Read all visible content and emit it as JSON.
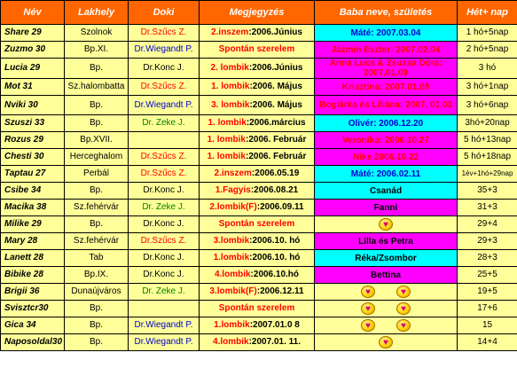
{
  "headers": {
    "name": "Név",
    "city": "Lakhely",
    "doctor": "Doki",
    "note": "Megjegyzés",
    "baby": "Baba neve, születés",
    "weeks": "Hét+ nap"
  },
  "colors": {
    "header_bg": "#ff6600",
    "row_bg": "#ffff99",
    "cyan": "#00ffff",
    "magenta": "#ff00ff",
    "red_text": "#ff0000",
    "blue_text": "#0000cc",
    "green_text": "#008000"
  },
  "rows": [
    {
      "name": "Share 29",
      "city": "Szolnok",
      "doctor": "Dr.Szűcs Z.",
      "doc_color": "red",
      "note_lead": "2.inszem",
      "note_rest": ":2006.Június",
      "baby": "Máté: 2007.03.04",
      "baby_bg": "cyan",
      "icons": 0,
      "weeks": "1 hó+5nap"
    },
    {
      "name": "Zuzmo 30",
      "city": "Bp.XI.",
      "doctor": "Dr.Wiegandt P.",
      "doc_color": "blue",
      "note_lead": "Spontán szerelem",
      "note_rest": "",
      "baby": "Jázmin Eszter: 2007.02.04",
      "baby_bg": "magenta",
      "icons": 0,
      "weeks": "2 hó+5nap"
    },
    {
      "name": "Lucia 29",
      "city": "Bp.",
      "doctor": "Dr.Konc J.",
      "doc_color": "black",
      "note_lead": "2. lombik",
      "note_rest": ":2006.Június",
      "baby": "Anna Luca &        Zsuzsa Dóra: 2007.01.09",
      "baby_bg": "magenta",
      "icons": 0,
      "weeks": "3 hó"
    },
    {
      "name": "Mot 31",
      "city": "Sz.halombatta",
      "doctor": "Dr.Szűcs Z.",
      "doc_color": "red",
      "note_lead": "1. lombik",
      "note_rest": ":2006. Május",
      "baby": "Krisztina: 2007.01.08",
      "baby_bg": "magenta",
      "icons": 0,
      "weeks": "3 hó+1nap"
    },
    {
      "name": "Nviki 30",
      "city": "Bp.",
      "doctor": "Dr.Wiegandt P.",
      "doc_color": "blue",
      "note_lead": "3. lombik",
      "note_rest": ":2006. Május",
      "baby": "Boglárka  és Liliána: 2007. 01.03",
      "baby_bg": "magenta",
      "icons": 0,
      "weeks": "3 hó+6nap"
    },
    {
      "name": "Szuszi 33",
      "city": "Bp.",
      "doctor": "Dr. Zeke J.",
      "doc_color": "green",
      "note_lead": "1. lombik",
      "note_rest": ":2006.március",
      "baby": "Olivér:  2006.12.20",
      "baby_bg": "cyan",
      "icons": 0,
      "weeks": "3hó+20nap"
    },
    {
      "name": "Rozus 29",
      "city": "Bp.XVII.",
      "doctor": "",
      "doc_color": "black",
      "note_lead": "1. lombik",
      "note_rest": ":2006. Február",
      "baby": "Veronika: 2006.10.27",
      "baby_bg": "magenta",
      "icons": 0,
      "weeks": "5 hó+13nap"
    },
    {
      "name": "Chesti 30",
      "city": "Herceghalom",
      "doctor": "Dr.Szűcs Z.",
      "doc_color": "red",
      "note_lead": "1. lombik",
      "note_rest": ":2006. Február",
      "baby": "Nike 2006.10.22",
      "baby_bg": "magenta",
      "icons": 0,
      "weeks": "5 hó+18nap"
    },
    {
      "name": "Taptau 27",
      "city": "Perbál",
      "doctor": "Dr.Szűcs Z.",
      "doc_color": "red",
      "note_lead": "2.inszem",
      "note_rest": ":2006.05.19",
      "baby": "Máté:  2006.02.11",
      "baby_bg": "cyan",
      "icons": 0,
      "weeks": "1év+1hó+29nap"
    },
    {
      "name": "Csibe 34",
      "city": "Bp.",
      "doctor": "Dr.Konc J.",
      "doc_color": "black",
      "note_lead": "1.Fagyis",
      "note_rest": ":2006.08.21",
      "baby": "Csanád",
      "baby_bg": "cyan",
      "icons": 0,
      "weeks": "35+3"
    },
    {
      "name": "Macika 38",
      "city": "Sz.fehérvár",
      "doctor": "Dr. Zeke J.",
      "doc_color": "green",
      "note_lead": "2.lombik(F)",
      "note_rest": ":2006.09.11",
      "baby": "Fanni",
      "baby_bg": "magenta",
      "icons": 0,
      "weeks": "31+3"
    },
    {
      "name": "Milike 29",
      "city": "Bp.",
      "doctor": "Dr.Konc J.",
      "doc_color": "black",
      "note_lead": "Spontán szerelem",
      "note_rest": "",
      "baby": "",
      "baby_bg": "yellow",
      "icons": 1,
      "weeks": "29+4"
    },
    {
      "name": "Mary 28",
      "city": "Sz.fehérvár",
      "doctor": "Dr.Szűcs Z.",
      "doc_color": "red",
      "note_lead": "3.lombik",
      "note_rest": ":2006.10. hó",
      "baby": "Lilla és Petra",
      "baby_bg": "magenta",
      "icons": 0,
      "weeks": "29+3"
    },
    {
      "name": "Lanett 28",
      "city": "Tab",
      "doctor": "Dr.Konc J.",
      "doc_color": "black",
      "note_lead": "1.lombik",
      "note_rest": ":2006.10. hó",
      "baby": "Réka/Zsombor",
      "baby_bg": "cyan",
      "icons": 0,
      "weeks": "28+3"
    },
    {
      "name": "Bibike 28",
      "city": "Bp.IX.",
      "doctor": "Dr.Konc J.",
      "doc_color": "black",
      "note_lead": "4.lombik",
      "note_rest": ":2006.10.hó",
      "baby": "Bettina",
      "baby_bg": "magenta",
      "icons": 0,
      "weeks": "25+5"
    },
    {
      "name": "Brigii 36",
      "city": "Dunaújváros",
      "doctor": "Dr. Zeke J.",
      "doc_color": "green",
      "note_lead": "3.lombik(F)",
      "note_rest": ":2006.12.11",
      "baby": "",
      "baby_bg": "yellow",
      "icons": 2,
      "weeks": "19+5"
    },
    {
      "name": "Svisztcr30",
      "city": "Bp.",
      "doctor": "",
      "doc_color": "black",
      "note_lead": "Spontán szerelem",
      "note_rest": "",
      "baby": "",
      "baby_bg": "yellow",
      "icons": 2,
      "weeks": "17+6"
    },
    {
      "name": "Gica  34",
      "city": "Bp.",
      "doctor": "Dr.Wiegandt P.",
      "doc_color": "blue",
      "note_lead": "1.lombik",
      "note_rest": ":2007.01.0 8",
      "baby": "",
      "baby_bg": "yellow",
      "icons": 2,
      "weeks": "15"
    },
    {
      "name": "Naposoldal30",
      "city": "Bp.",
      "doctor": "Dr.Wiegandt P.",
      "doc_color": "blue",
      "note_lead": "4.lombik",
      "note_rest": ":2007.01. 11.",
      "baby": "",
      "baby_bg": "yellow",
      "icons": 1,
      "weeks": "14+4"
    }
  ]
}
